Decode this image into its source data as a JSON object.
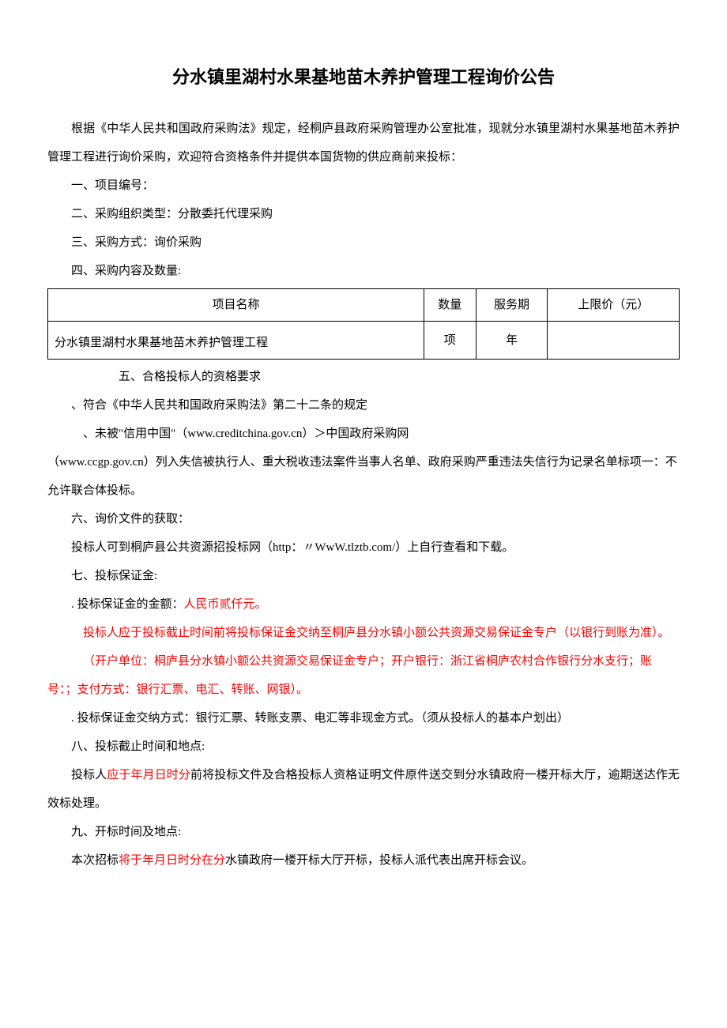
{
  "title": "分水镇里湖村水果基地苗木养护管理工程询价公告",
  "intro": "根据《中华人民共和国政府采购法》规定，经桐庐县政府采购管理办公室批准，现就分水镇里湖村水果基地苗木养护管理工程进行询价采购，欢迎符合资格条件并提供本国货物的供应商前来投标：",
  "sections": {
    "s1": "一、项目编号：",
    "s2": "二、采购组织类型：分散委托代理采购",
    "s3": "三、采购方式：询价采购",
    "s4": "四、采购内容及数量:",
    "s5": "五、合格投标人的资格要求",
    "s5_1": "、符合《中华人民共和国政府采购法》第二十二条的规定",
    "s5_2a": "、未被\"信用中国\"（www.creditchina.gov.cn）＞中国政府采购网",
    "s5_2b": "（www.ccgp.gov.cn）列入失信被执行人、重大税收违法案件当事人名单、政府采购严重违法失信行为记录名单标项一：不允许联合体投标。",
    "s6": "六、询价文件的获取：",
    "s6_1": "投标人可到桐庐县公共资源招投标网（http：〃WwW.tlztb.com/）上自行查看和下载。",
    "s7": "七、投标保证金:",
    "s7_1a": ". 投标保证金的金额：",
    "s7_1b": "人民币贰仟元。",
    "s7_2": "投标人应于投标截止时间前将投标保证金交纳至桐庐县分水镇小额公共资源交易保证金专户（以银行到账为准）。",
    "s7_3": "（开户单位：桐庐县分水镇小额公共资源交易保证金专户；开户银行：浙江省桐庐农村合作银行分水支行；账号：；支付方式：银行汇票、电汇、转账、网银）。",
    "s7_4": ". 投标保证金交纳方式：银行汇票、转账支票、电汇等非现金方式。（须从投标人的基本户划出）",
    "s8": "八、投标截止时间和地点:",
    "s8_1a": "投标人",
    "s8_1b": "应于年月日时分",
    "s8_1c": "前将投标文件及合格投标人资格证明文件原件送交到分水镇政府一楼开标大厅，逾期送达作无效标处理。",
    "s9": "九、开标时间及地点:",
    "s9_1a": "本次招标",
    "s9_1b": "将于年月日时分在分",
    "s9_1c": "水镇政府一楼开标大厅开标，投标人派代表出席开标会议。"
  },
  "table": {
    "headers": {
      "col1": "项目名称",
      "col2": "数量",
      "col3": "服务期",
      "col4": "上限价（元）"
    },
    "row": {
      "col1": "分水镇里湖村水果基地苗木养护管理工程",
      "col2": "项",
      "col3": "年",
      "col4": ""
    }
  },
  "colors": {
    "text": "#000000",
    "highlight": "#ff0000",
    "background": "#ffffff",
    "border": "#000000"
  },
  "typography": {
    "title_fontsize": 22,
    "body_fontsize": 15,
    "font_family": "SimSun"
  }
}
